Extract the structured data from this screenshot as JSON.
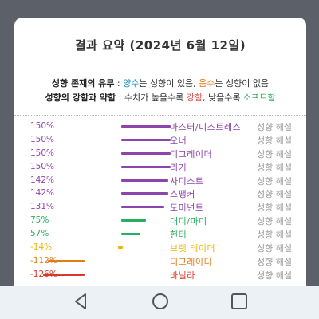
{
  "header": {
    "title": "결과 요약 (2024년 6월 12일)"
  },
  "legend": {
    "line1": {
      "label": "성향 존재의 유무",
      "sep": " : ",
      "pos": "양수",
      "t1": "는 성향이 있음, ",
      "neg": "음수",
      "t2": "는 성향이 없음"
    },
    "line2": {
      "label": "성향의 강함과 약함",
      "sep": " : 수치가 높을수록 ",
      "strong": "강함",
      "t1": ", 낮을수록 ",
      "soft": "소프트함"
    }
  },
  "colors": {
    "purple": "#8e44ad",
    "green": "#27ae60",
    "yellow": "#f0b400",
    "orange": "#e07b1a",
    "red": "#d63a2a"
  },
  "rows": [
    {
      "pct": "150%",
      "value": 150,
      "name": "마스터/미스트레스",
      "color": "#8e44ad",
      "link": "성향 해설"
    },
    {
      "pct": "150%",
      "value": 150,
      "name": "오너",
      "color": "#8e44ad",
      "link": "성향 해설"
    },
    {
      "pct": "150%",
      "value": 150,
      "name": "디그레이더",
      "color": "#8e44ad",
      "link": "성향 해설"
    },
    {
      "pct": "150%",
      "value": 150,
      "name": "리거",
      "color": "#8e44ad",
      "link": "성향 해설"
    },
    {
      "pct": "142%",
      "value": 142,
      "name": "사디스트",
      "color": "#8e44ad",
      "link": "성향 해설"
    },
    {
      "pct": "142%",
      "value": 142,
      "name": "스팽커",
      "color": "#8e44ad",
      "link": "성향 해설"
    },
    {
      "pct": "131%",
      "value": 131,
      "name": "도미넌트",
      "color": "#8e44ad",
      "link": "성향 해설"
    },
    {
      "pct": "75%",
      "value": 75,
      "name": "대디/마미",
      "color": "#27ae60",
      "link": "성향 해설"
    },
    {
      "pct": "57%",
      "value": 57,
      "name": "헌터",
      "color": "#27ae60",
      "link": "성향 해설"
    },
    {
      "pct": "-14%",
      "value": -14,
      "name": "브랫 테이머",
      "color": "#f0b400",
      "link": "성향 해설"
    },
    {
      "pct": "-112%",
      "value": -112,
      "name": "디그레이디",
      "color": "#e07b1a",
      "link": "성향 해설"
    },
    {
      "pct": "-126%",
      "value": -126,
      "name": "바닐라",
      "color": "#d63a2a",
      "link": "성향 해설"
    }
  ],
  "nav": {
    "back": "back-icon",
    "home": "home-icon",
    "recents": "recents-icon"
  }
}
